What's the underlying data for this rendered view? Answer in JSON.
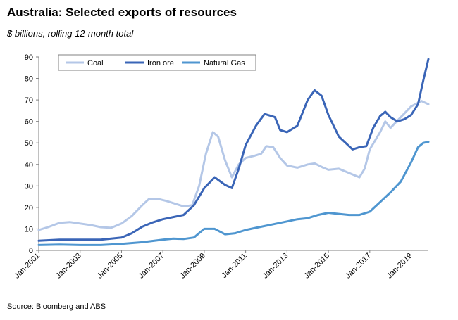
{
  "title": "Australia: Selected exports of resources",
  "subtitle": "$ billions, rolling 12-month total",
  "source": "Source: Bloomberg and ABS",
  "chart_data": {
    "type": "line",
    "title": "Australia: Selected exports of resources",
    "subtitle": "$ billions, rolling 12-month total",
    "ylim": [
      0,
      90
    ],
    "yticks": [
      0,
      10,
      20,
      30,
      40,
      50,
      60,
      70,
      80,
      90
    ],
    "xlim": [
      "Jan-2001",
      "Nov-2019"
    ],
    "xticks": [
      "Jan-2001",
      "Jan-2003",
      "Jan-2005",
      "Jan-2007",
      "Jan-2009",
      "Jan-2011",
      "Jan-2013",
      "Jan-2015",
      "Jan-2017",
      "Jan-2019"
    ],
    "grid": false,
    "legend_position": "top-left",
    "series": [
      {
        "name": "Coal",
        "color": "#b4c7e7",
        "points": [
          [
            "2001-01",
            9.5
          ],
          [
            "2001-07",
            11
          ],
          [
            "2002-01",
            12.8
          ],
          [
            "2002-07",
            13.2
          ],
          [
            "2003-01",
            12.5
          ],
          [
            "2003-07",
            11.8
          ],
          [
            "2004-01",
            10.8
          ],
          [
            "2004-07",
            10.5
          ],
          [
            "2005-01",
            12.5
          ],
          [
            "2005-07",
            16
          ],
          [
            "2006-01",
            21
          ],
          [
            "2006-05",
            24
          ],
          [
            "2006-10",
            24
          ],
          [
            "2007-03",
            23
          ],
          [
            "2007-07",
            22
          ],
          [
            "2008-01",
            20.5
          ],
          [
            "2008-06",
            21
          ],
          [
            "2008-10",
            30
          ],
          [
            "2009-02",
            45
          ],
          [
            "2009-06",
            55
          ],
          [
            "2009-09",
            53
          ],
          [
            "2010-01",
            42
          ],
          [
            "2010-05",
            34
          ],
          [
            "2010-09",
            40
          ],
          [
            "2011-01",
            43
          ],
          [
            "2011-06",
            44
          ],
          [
            "2011-10",
            45
          ],
          [
            "2012-01",
            48.5
          ],
          [
            "2012-05",
            48
          ],
          [
            "2012-09",
            43
          ],
          [
            "2013-01",
            39.5
          ],
          [
            "2013-07",
            38.5
          ],
          [
            "2014-01",
            40
          ],
          [
            "2014-05",
            40.5
          ],
          [
            "2014-10",
            38.5
          ],
          [
            "2015-01",
            37.5
          ],
          [
            "2015-07",
            38
          ],
          [
            "2016-01",
            36
          ],
          [
            "2016-07",
            34
          ],
          [
            "2016-10",
            38
          ],
          [
            "2017-01",
            47
          ],
          [
            "2017-07",
            55
          ],
          [
            "2017-10",
            60
          ],
          [
            "2018-01",
            57
          ],
          [
            "2018-07",
            62
          ],
          [
            "2019-01",
            67
          ],
          [
            "2019-07",
            69.5
          ],
          [
            "2019-11",
            68
          ]
        ]
      },
      {
        "name": "Iron ore",
        "color": "#3a65b7",
        "points": [
          [
            "2001-01",
            4.5
          ],
          [
            "2002-01",
            5
          ],
          [
            "2003-01",
            5
          ],
          [
            "2004-01",
            5
          ],
          [
            "2005-01",
            6
          ],
          [
            "2005-07",
            8
          ],
          [
            "2006-01",
            11
          ],
          [
            "2006-07",
            13
          ],
          [
            "2007-01",
            14.5
          ],
          [
            "2007-07",
            15.5
          ],
          [
            "2008-01",
            16.5
          ],
          [
            "2008-07",
            21
          ],
          [
            "2009-01",
            29
          ],
          [
            "2009-07",
            34
          ],
          [
            "2010-01",
            30.5
          ],
          [
            "2010-05",
            29
          ],
          [
            "2010-09",
            38
          ],
          [
            "2011-01",
            49
          ],
          [
            "2011-07",
            58
          ],
          [
            "2011-12",
            63.5
          ],
          [
            "2012-06",
            62
          ],
          [
            "2012-09",
            56
          ],
          [
            "2013-01",
            55
          ],
          [
            "2013-07",
            58
          ],
          [
            "2014-01",
            70
          ],
          [
            "2014-05",
            74.5
          ],
          [
            "2014-09",
            72
          ],
          [
            "2015-01",
            63
          ],
          [
            "2015-07",
            53
          ],
          [
            "2015-11",
            50
          ],
          [
            "2016-03",
            47
          ],
          [
            "2016-07",
            48
          ],
          [
            "2016-11",
            48.5
          ],
          [
            "2017-03",
            57
          ],
          [
            "2017-07",
            62.5
          ],
          [
            "2017-10",
            64.5
          ],
          [
            "2018-01",
            62
          ],
          [
            "2018-05",
            60
          ],
          [
            "2018-09",
            61
          ],
          [
            "2019-01",
            63
          ],
          [
            "2019-05",
            68
          ],
          [
            "2019-08",
            79
          ],
          [
            "2019-11",
            89
          ]
        ]
      },
      {
        "name": "Natural Gas",
        "color": "#4f96d0",
        "points": [
          [
            "2001-01",
            2.5
          ],
          [
            "2002-01",
            2.7
          ],
          [
            "2003-01",
            2.5
          ],
          [
            "2004-01",
            2.5
          ],
          [
            "2005-01",
            3
          ],
          [
            "2006-01",
            3.8
          ],
          [
            "2007-01",
            5
          ],
          [
            "2007-07",
            5.5
          ],
          [
            "2008-01",
            5.3
          ],
          [
            "2008-07",
            6
          ],
          [
            "2009-01",
            10
          ],
          [
            "2009-07",
            10
          ],
          [
            "2010-01",
            7.5
          ],
          [
            "2010-07",
            8
          ],
          [
            "2011-01",
            9.5
          ],
          [
            "2011-07",
            10.5
          ],
          [
            "2012-01",
            11.5
          ],
          [
            "2012-07",
            12.5
          ],
          [
            "2013-01",
            13.5
          ],
          [
            "2013-07",
            14.5
          ],
          [
            "2014-01",
            15
          ],
          [
            "2014-07",
            16.5
          ],
          [
            "2015-01",
            17.5
          ],
          [
            "2015-07",
            17
          ],
          [
            "2016-01",
            16.5
          ],
          [
            "2016-07",
            16.5
          ],
          [
            "2017-01",
            18
          ],
          [
            "2017-07",
            22.5
          ],
          [
            "2018-01",
            27
          ],
          [
            "2018-07",
            32
          ],
          [
            "2019-01",
            41
          ],
          [
            "2019-05",
            48
          ],
          [
            "2019-08",
            50
          ],
          [
            "2019-11",
            50.5
          ]
        ]
      }
    ]
  }
}
